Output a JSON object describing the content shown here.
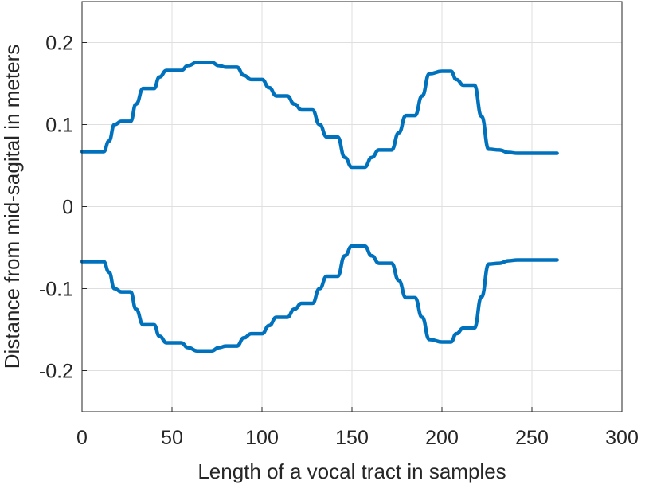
{
  "chart_data": {
    "type": "line",
    "title": "",
    "xlabel": "Length of a vocal tract in samples",
    "ylabel": "Distance from mid-sagital in meters",
    "xlim": [
      0,
      300
    ],
    "ylim": [
      -0.25,
      0.25
    ],
    "xticks": [
      0,
      50,
      100,
      150,
      200,
      250,
      300
    ],
    "xtick_labels": [
      "0",
      "50",
      "100",
      "150",
      "200",
      "250",
      "300"
    ],
    "yticks": [
      0.2,
      0.1,
      0,
      -0.1,
      -0.2
    ],
    "ytick_labels": [
      "0.2",
      "0.1",
      "0",
      "-0.1",
      "-0.2"
    ],
    "grid": true,
    "legend": "none",
    "color": "#0072bd",
    "series": [
      {
        "values": [
          [
            0,
            0.067
          ],
          [
            12,
            0.067
          ],
          [
            15,
            0.08
          ],
          [
            18,
            0.1
          ],
          [
            22,
            0.104
          ],
          [
            27,
            0.104
          ],
          [
            30,
            0.125
          ],
          [
            34,
            0.144
          ],
          [
            40,
            0.144
          ],
          [
            43,
            0.158
          ],
          [
            47,
            0.166
          ],
          [
            55,
            0.166
          ],
          [
            59,
            0.172
          ],
          [
            64,
            0.176
          ],
          [
            72,
            0.176
          ],
          [
            76,
            0.172
          ],
          [
            80,
            0.17
          ],
          [
            86,
            0.17
          ],
          [
            90,
            0.16
          ],
          [
            94,
            0.155
          ],
          [
            100,
            0.155
          ],
          [
            104,
            0.145
          ],
          [
            108,
            0.135
          ],
          [
            114,
            0.135
          ],
          [
            118,
            0.125
          ],
          [
            122,
            0.118
          ],
          [
            128,
            0.118
          ],
          [
            132,
            0.1
          ],
          [
            136,
            0.085
          ],
          [
            142,
            0.085
          ],
          [
            146,
            0.06
          ],
          [
            150,
            0.048
          ],
          [
            157,
            0.048
          ],
          [
            161,
            0.06
          ],
          [
            165,
            0.069
          ],
          [
            172,
            0.069
          ],
          [
            176,
            0.09
          ],
          [
            180,
            0.111
          ],
          [
            185,
            0.111
          ],
          [
            189,
            0.135
          ],
          [
            193,
            0.162
          ],
          [
            200,
            0.165
          ],
          [
            205,
            0.165
          ],
          [
            208,
            0.155
          ],
          [
            212,
            0.148
          ],
          [
            218,
            0.148
          ],
          [
            222,
            0.11
          ],
          [
            226,
            0.07
          ],
          [
            232,
            0.069
          ],
          [
            237,
            0.066
          ],
          [
            242,
            0.065
          ],
          [
            264,
            0.065
          ]
        ]
      },
      {
        "values": [
          [
            0,
            -0.067
          ],
          [
            12,
            -0.067
          ],
          [
            15,
            -0.08
          ],
          [
            18,
            -0.1
          ],
          [
            22,
            -0.104
          ],
          [
            27,
            -0.104
          ],
          [
            30,
            -0.125
          ],
          [
            34,
            -0.144
          ],
          [
            40,
            -0.144
          ],
          [
            43,
            -0.158
          ],
          [
            47,
            -0.166
          ],
          [
            55,
            -0.166
          ],
          [
            59,
            -0.172
          ],
          [
            64,
            -0.176
          ],
          [
            72,
            -0.176
          ],
          [
            76,
            -0.172
          ],
          [
            80,
            -0.17
          ],
          [
            86,
            -0.17
          ],
          [
            90,
            -0.16
          ],
          [
            94,
            -0.155
          ],
          [
            100,
            -0.155
          ],
          [
            104,
            -0.145
          ],
          [
            108,
            -0.135
          ],
          [
            114,
            -0.135
          ],
          [
            118,
            -0.125
          ],
          [
            122,
            -0.118
          ],
          [
            128,
            -0.118
          ],
          [
            132,
            -0.1
          ],
          [
            136,
            -0.085
          ],
          [
            142,
            -0.085
          ],
          [
            146,
            -0.06
          ],
          [
            150,
            -0.048
          ],
          [
            157,
            -0.048
          ],
          [
            161,
            -0.06
          ],
          [
            165,
            -0.069
          ],
          [
            172,
            -0.069
          ],
          [
            176,
            -0.09
          ],
          [
            180,
            -0.111
          ],
          [
            185,
            -0.111
          ],
          [
            189,
            -0.135
          ],
          [
            193,
            -0.162
          ],
          [
            200,
            -0.165
          ],
          [
            205,
            -0.165
          ],
          [
            208,
            -0.155
          ],
          [
            212,
            -0.148
          ],
          [
            218,
            -0.148
          ],
          [
            222,
            -0.11
          ],
          [
            226,
            -0.07
          ],
          [
            232,
            -0.069
          ],
          [
            237,
            -0.066
          ],
          [
            242,
            -0.065
          ],
          [
            264,
            -0.065
          ]
        ]
      }
    ]
  }
}
